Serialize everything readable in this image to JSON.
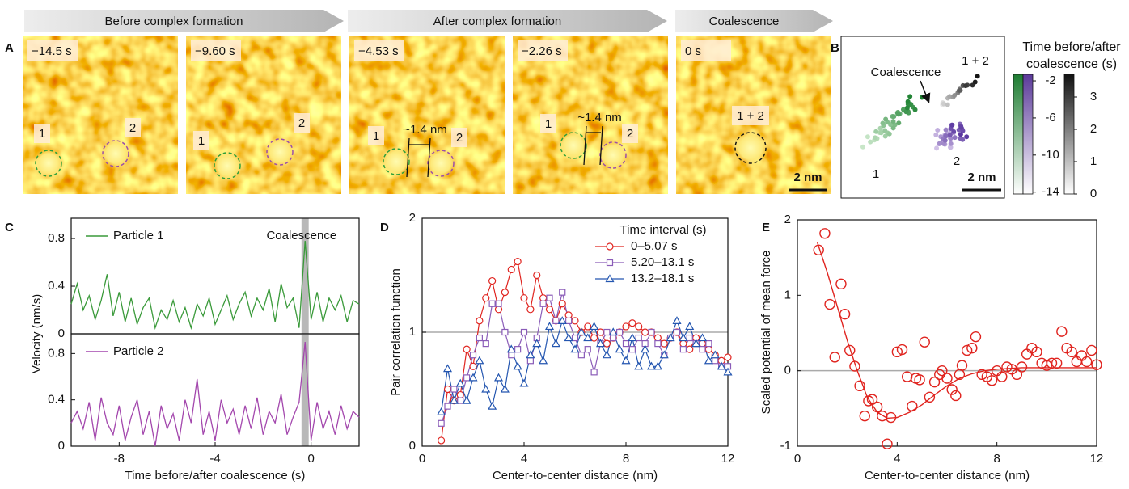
{
  "banners": [
    "Before complex formation",
    "After complex formation",
    "Coalescence"
  ],
  "panel_a": {
    "label": "A",
    "frames": [
      {
        "time": "−14.5 s",
        "particles": [
          "1",
          "2"
        ]
      },
      {
        "time": "−9.60 s",
        "particles": [
          "1",
          "2"
        ]
      },
      {
        "time": "−4.53 s",
        "particles": [
          "1",
          "2"
        ],
        "gap": "~1.4 nm"
      },
      {
        "time": "−2.26 s",
        "particles": [
          "1",
          "2"
        ],
        "gap": "~1.4 nm"
      },
      {
        "time": "0 s",
        "particles": [
          "1 + 2"
        ]
      }
    ],
    "scale_bar": "2 nm"
  },
  "panel_b": {
    "label": "B",
    "annotation": "Coalescence",
    "labels": [
      "1",
      "2",
      "1 + 2"
    ],
    "scale_bar": "2 nm",
    "colorbar_title": "Time before/after coalescence (s)",
    "colorbar_left_lim": [
      -14.2,
      -1.3
    ],
    "colorbar_left_ticks": [
      -2,
      -6,
      -10,
      -14
    ],
    "colorbar_right_lim": [
      0,
      3.7
    ],
    "colorbar_right_ticks": [
      3,
      2,
      1,
      0
    ]
  },
  "chart_data": [
    {
      "type": "line",
      "panel_label": "C",
      "ylabel": "Velocity (nm/s)",
      "annotation": "Coalescence",
      "x": [
        -10,
        -9.75,
        -9.5,
        -9.25,
        -9,
        -8.75,
        -8.5,
        -8.25,
        -8,
        -7.75,
        -7.5,
        -7.25,
        -7,
        -6.75,
        -6.5,
        -6.25,
        -6,
        -5.75,
        -5.5,
        -5.25,
        -5,
        -4.75,
        -4.5,
        -4.25,
        -4,
        -3.75,
        -3.5,
        -3.25,
        -3,
        -2.75,
        -2.5,
        -2.25,
        -2,
        -1.75,
        -1.5,
        -1.25,
        -1,
        -0.75,
        -0.5,
        -0.25,
        0,
        0.25,
        0.5,
        0.75,
        1,
        1.25,
        1.5,
        1.75,
        2
      ],
      "series": [
        {
          "name": "Particle 1",
          "color": "#3a9a3a",
          "values": [
            0.25,
            0.42,
            0.2,
            0.32,
            0.12,
            0.28,
            0.5,
            0.15,
            0.35,
            0.1,
            0.3,
            0.08,
            0.22,
            0.3,
            0.05,
            0.2,
            0.12,
            0.28,
            0.1,
            0.22,
            0.05,
            0.25,
            0.15,
            0.3,
            0.08,
            0.2,
            0.32,
            0.12,
            0.25,
            0.35,
            0.15,
            0.3,
            0.2,
            0.38,
            0.1,
            0.42,
            0.22,
            0.3,
            0.05,
            0.78,
            0.12,
            0.35,
            0.1,
            0.3,
            0.2,
            0.32,
            0.1,
            0.28,
            0.25
          ]
        }
      ],
      "xlim": [
        -10,
        2
      ],
      "ylim": [
        0,
        0.97
      ],
      "yticks": [
        0,
        0.4,
        0.8
      ],
      "highlight_x": [
        -0.4,
        -0.1
      ]
    },
    {
      "type": "line",
      "x": [
        -10,
        -9.75,
        -9.5,
        -9.25,
        -9,
        -8.75,
        -8.5,
        -8.25,
        -8,
        -7.75,
        -7.5,
        -7.25,
        -7,
        -6.75,
        -6.5,
        -6.25,
        -6,
        -5.75,
        -5.5,
        -5.25,
        -5,
        -4.75,
        -4.5,
        -4.25,
        -4,
        -3.75,
        -3.5,
        -3.25,
        -3,
        -2.75,
        -2.5,
        -2.25,
        -2,
        -1.75,
        -1.5,
        -1.25,
        -1,
        -0.75,
        -0.5,
        -0.25,
        0,
        0.25,
        0.5,
        0.75,
        1,
        1.25,
        1.5,
        1.75,
        2
      ],
      "series": [
        {
          "name": "Particle 2",
          "color": "#a347ad",
          "values": [
            0.2,
            0.3,
            0.15,
            0.38,
            0.05,
            0.42,
            0.2,
            0.1,
            0.35,
            0.05,
            0.25,
            0.4,
            0.1,
            0.3,
            0,
            0.35,
            0.15,
            0.28,
            0.05,
            0.4,
            0.2,
            0.58,
            0.1,
            0.3,
            0.05,
            0.4,
            0.2,
            0.32,
            0.1,
            0.35,
            0.15,
            0.42,
            0.1,
            0.3,
            0.2,
            0.45,
            0.1,
            0.25,
            0.38,
            0.9,
            0.05,
            0.38,
            0.15,
            0.3,
            0.1,
            0.35,
            0.15,
            0.3,
            0.25
          ]
        }
      ],
      "xlim": [
        -10,
        2
      ],
      "ylim": [
        0,
        0.97
      ],
      "yticks": [
        0,
        0.4,
        0.8
      ],
      "xticks": [
        -8,
        -4,
        0
      ],
      "xlabel": "Time before/after coalescence (s)",
      "highlight_x": [
        -0.4,
        -0.1
      ]
    },
    {
      "type": "line-markers",
      "panel_label": "D",
      "ylabel": "Pair correlation function",
      "xlabel": "Center-to-center distance (nm)",
      "legend_title": "Time interval (s)",
      "hline": 1,
      "x": [
        0.75,
        1,
        1.25,
        1.5,
        1.75,
        2,
        2.25,
        2.5,
        2.75,
        3,
        3.25,
        3.5,
        3.75,
        4,
        4.25,
        4.5,
        4.75,
        5,
        5.25,
        5.5,
        5.75,
        6,
        6.25,
        6.5,
        6.75,
        7,
        7.25,
        7.5,
        7.75,
        8,
        8.25,
        8.5,
        8.75,
        9,
        9.25,
        9.5,
        9.75,
        10,
        10.25,
        10.5,
        10.75,
        11,
        11.25,
        11.5,
        11.75,
        12
      ],
      "series": [
        {
          "name": "0–5.07 s",
          "color": "#e0241f",
          "marker": "circle",
          "values": [
            0.05,
            0.5,
            0.4,
            0.45,
            0.85,
            0.7,
            1.1,
            1.3,
            1.45,
            1.2,
            1.35,
            1.55,
            1.62,
            1.3,
            1.2,
            1.5,
            1.3,
            1.2,
            1.1,
            1.25,
            1.15,
            1.1,
            1.0,
            1.05,
            0.95,
            1.0,
            0.9,
            0.95,
            1.0,
            1.05,
            1.08,
            1.05,
            1.0,
            1.0,
            0.95,
            0.9,
            0.95,
            1.0,
            0.9,
            0.85,
            0.95,
            0.9,
            0.85,
            0.8,
            0.75,
            0.78
          ]
        },
        {
          "name": "5.20–13.1 s",
          "color": "#8a5cb8",
          "marker": "square",
          "values": [
            0.2,
            0.35,
            0.5,
            0.4,
            0.6,
            0.8,
            0.95,
            0.9,
            1.25,
            1.25,
            1.0,
            0.8,
            0.85,
            1.0,
            0.75,
            0.95,
            1.25,
            1.3,
            1.1,
            1.35,
            1.1,
            0.95,
            0.8,
            0.85,
            0.65,
            0.9,
            1.0,
            0.95,
            1.0,
            0.9,
            0.85,
            0.95,
            0.9,
            1.0,
            0.9,
            0.8,
            0.95,
            1.0,
            0.85,
            0.95,
            0.9,
            0.85,
            0.9,
            0.75,
            0.7,
            0.7
          ]
        },
        {
          "name": "13.2–18.1 s",
          "color": "#2456b0",
          "marker": "triangle",
          "values": [
            0.3,
            0.68,
            0.4,
            0.55,
            0.4,
            0.6,
            0.75,
            0.5,
            0.35,
            0.6,
            0.5,
            0.85,
            0.7,
            0.55,
            0.8,
            0.9,
            0.75,
            1.05,
            0.9,
            1.1,
            0.95,
            0.85,
            1.0,
            0.95,
            1.05,
            0.9,
            0.8,
            1.0,
            0.85,
            0.75,
            0.95,
            0.7,
            0.85,
            0.7,
            0.7,
            0.8,
            0.95,
            1.1,
            0.95,
            1.05,
            0.9,
            0.95,
            0.75,
            0.8,
            0.7,
            0.65
          ]
        }
      ],
      "xlim": [
        0,
        12
      ],
      "ylim": [
        0,
        2
      ],
      "xticks": [
        0,
        4,
        8,
        12
      ],
      "yticks": [
        0,
        1,
        2
      ]
    },
    {
      "type": "scatter-fit",
      "panel_label": "E",
      "ylabel": "Scaled potential of mean force",
      "xlabel": "Center-to-center distance (nm)",
      "hline": 0,
      "color": "#e0241f",
      "points": {
        "x": [
          0.85,
          1.1,
          1.3,
          1.5,
          1.75,
          1.9,
          2.1,
          2.3,
          2.5,
          2.7,
          2.85,
          3.0,
          3.2,
          3.4,
          3.6,
          3.75,
          4.0,
          4.2,
          4.4,
          4.6,
          4.75,
          4.9,
          5.1,
          5.3,
          5.5,
          5.7,
          5.8,
          6.0,
          6.2,
          6.35,
          6.5,
          6.6,
          6.8,
          7.0,
          7.15,
          7.4,
          7.6,
          7.8,
          8.0,
          8.2,
          8.4,
          8.6,
          8.8,
          9.0,
          9.2,
          9.4,
          9.6,
          9.8,
          10.0,
          10.2,
          10.4,
          10.6,
          10.8,
          11.0,
          11.2,
          11.4,
          11.6,
          11.8,
          12.0
        ],
        "values": [
          1.6,
          1.82,
          0.88,
          0.18,
          1.15,
          0.75,
          0.27,
          0.06,
          -0.2,
          -0.6,
          -0.4,
          -0.38,
          -0.48,
          -0.6,
          -0.97,
          -0.62,
          0.25,
          0.28,
          -0.08,
          -0.47,
          -0.1,
          -0.12,
          0.38,
          -0.35,
          -0.15,
          -0.05,
          0,
          -0.1,
          -0.25,
          -0.33,
          -0.05,
          0.07,
          0.27,
          0.3,
          0.45,
          -0.05,
          -0.08,
          -0.13,
          0,
          -0.08,
          0.05,
          0.02,
          -0.05,
          0.05,
          0.22,
          0.3,
          0.25,
          0.1,
          0.07,
          0.1,
          0.1,
          0.52,
          0.3,
          0.25,
          0.12,
          0.2,
          0.12,
          0.27,
          0.08
        ]
      },
      "fit": {
        "x": [
          0.8,
          1.2,
          1.6,
          2.0,
          2.4,
          2.8,
          3.2,
          3.6,
          4.0,
          4.5,
          5,
          5.5,
          6,
          6.5,
          7,
          7.5,
          8,
          9,
          10,
          11,
          12
        ],
        "values": [
          1.7,
          1.3,
          0.85,
          0.4,
          0,
          -0.35,
          -0.55,
          -0.63,
          -0.62,
          -0.55,
          -0.45,
          -0.32,
          -0.2,
          -0.1,
          -0.04,
          0,
          0.02,
          0.04,
          0.04,
          0.04,
          0.04
        ]
      },
      "xlim": [
        0,
        12
      ],
      "ylim": [
        -1,
        2
      ],
      "xticks": [
        0,
        4,
        8,
        12
      ],
      "yticks": [
        -1,
        0,
        1,
        2
      ]
    }
  ]
}
